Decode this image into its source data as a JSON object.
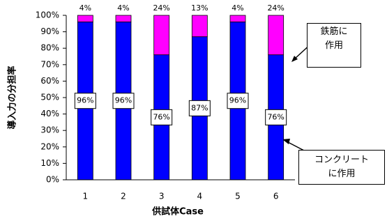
{
  "chart_data": {
    "type": "bar",
    "stacked": true,
    "x_label": "供試体Case",
    "y_label": "導入力の分担率",
    "categories": [
      "1",
      "2",
      "3",
      "4",
      "5",
      "6"
    ],
    "series": [
      {
        "name": "コンクリート\nに作用",
        "color": "#0000ff",
        "values": [
          96,
          96,
          76,
          87,
          96,
          76
        ],
        "value_labels": [
          "96%",
          "96%",
          "76%",
          "87%",
          "96%",
          "76%"
        ]
      },
      {
        "name": "鉄筋に\n作用",
        "color": "#ff00ff",
        "values": [
          4,
          4,
          24,
          13,
          4,
          24
        ],
        "value_labels": [
          "4%",
          "4%",
          "24%",
          "13%",
          "4%",
          "24%"
        ]
      }
    ],
    "ylim": [
      0,
      100
    ],
    "yticks": [
      {
        "value": 0,
        "label": "0%"
      },
      {
        "value": 10,
        "label": "10%"
      },
      {
        "value": 20,
        "label": "20%"
      },
      {
        "value": 30,
        "label": "30%"
      },
      {
        "value": 40,
        "label": "40%"
      },
      {
        "value": 50,
        "label": "50%"
      },
      {
        "value": 60,
        "label": "60%"
      },
      {
        "value": 70,
        "label": "70%"
      },
      {
        "value": 80,
        "label": "80%"
      },
      {
        "value": 90,
        "label": "90%"
      },
      {
        "value": 100,
        "label": "100%"
      }
    ],
    "grid": false
  }
}
